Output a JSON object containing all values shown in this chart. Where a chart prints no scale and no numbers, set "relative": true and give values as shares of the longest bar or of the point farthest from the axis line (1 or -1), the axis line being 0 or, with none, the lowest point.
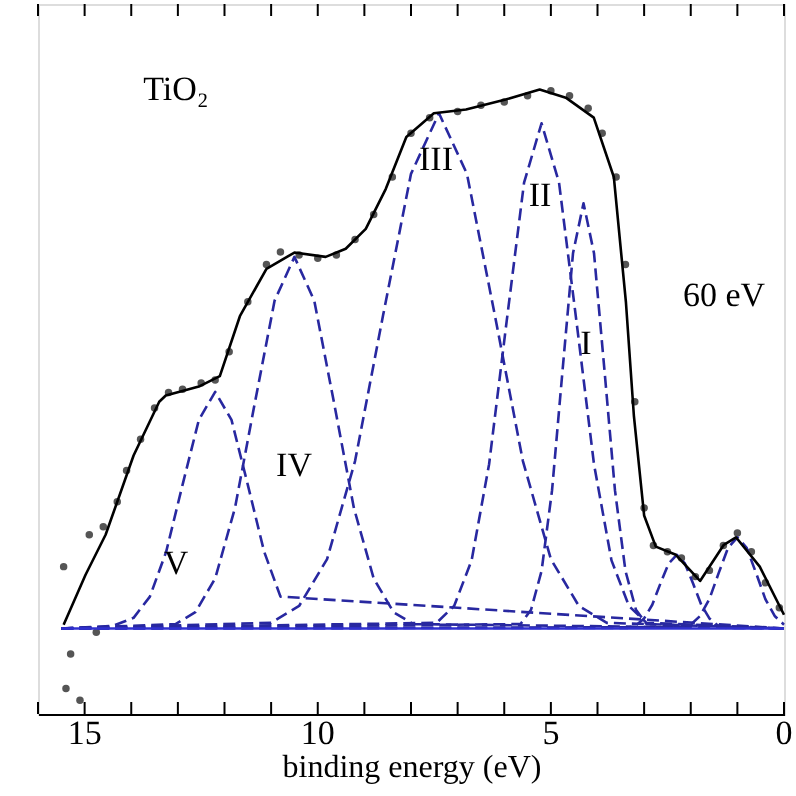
{
  "chart_data": {
    "type": "line",
    "relative": true,
    "xlabel": "binding energy (eV)",
    "xlim": [
      16,
      0
    ],
    "xticks": [
      0,
      {
        "value": 1,
        "label": null
      },
      {
        "value": 2,
        "label": null
      },
      {
        "value": 3,
        "label": null
      },
      {
        "value": 4,
        "label": null
      },
      5,
      {
        "value": 6,
        "label": null
      },
      {
        "value": 7,
        "label": null
      },
      {
        "value": 8,
        "label": null
      },
      {
        "value": 9,
        "label": null
      },
      10,
      {
        "value": 11,
        "label": null
      },
      {
        "value": 12,
        "label": null
      },
      {
        "value": 13,
        "label": null
      },
      {
        "value": 14,
        "label": null
      },
      15,
      {
        "value": 16,
        "label": null
      }
    ],
    "tick_labels": "x",
    "grid": false,
    "series": [
      {
        "type": "scatter",
        "marker": "circle",
        "color": "#555555",
        "x": [
          15.45,
          15.3,
          15.4,
          15.1,
          14.9,
          14.75,
          14.6,
          14.3,
          14.1,
          13.8,
          13.5,
          13.2,
          12.9,
          12.5,
          12.2,
          11.9,
          11.5,
          11.1,
          10.8,
          10.4,
          10.0,
          9.6,
          9.2,
          8.8,
          8.4,
          8.0,
          7.6,
          7.0,
          6.5,
          6.0,
          5.5,
          5.0,
          4.6,
          4.2,
          3.9,
          3.6,
          3.4,
          3.2,
          3.0,
          2.8,
          2.5,
          2.2,
          1.9,
          1.6,
          1.3,
          1.0,
          0.7,
          0.4,
          0.1
        ],
        "values": [
          0.236,
          0.096,
          0.041,
          0.022,
          0.287,
          0.131,
          0.3,
          0.34,
          0.39,
          0.44,
          0.49,
          0.515,
          0.52,
          0.53,
          0.535,
          0.58,
          0.66,
          0.72,
          0.74,
          0.735,
          0.73,
          0.735,
          0.76,
          0.8,
          0.86,
          0.93,
          0.955,
          0.965,
          0.975,
          0.98,
          0.99,
          0.998,
          0.99,
          0.97,
          0.93,
          0.86,
          0.72,
          0.5,
          0.33,
          0.27,
          0.26,
          0.25,
          0.22,
          0.23,
          0.27,
          0.29,
          0.26,
          0.21,
          0.17
        ]
      },
      {
        "color": "#2828a0",
        "line_style": "dashed",
        "x": [
          15.5,
          14.4,
          13.95,
          13.6,
          13.25,
          12.9,
          12.55,
          12.2,
          11.85,
          11.5,
          11.15,
          10.8,
          0
        ],
        "values": [
          0.137,
          0.141,
          0.154,
          0.188,
          0.26,
          0.367,
          0.471,
          0.516,
          0.471,
          0.367,
          0.26,
          0.188,
          0.137
        ]
      },
      {
        "color": "#2828a0",
        "line_style": "dashed",
        "x": [
          15.5,
          13.05,
          12.625,
          12.2,
          11.775,
          11.35,
          10.925,
          10.5,
          10.075,
          9.65,
          9.225,
          8.8,
          8.375,
          7.95,
          0
        ],
        "values": [
          0.137,
          0.144,
          0.163,
          0.217,
          0.33,
          0.498,
          0.662,
          0.732,
          0.662,
          0.498,
          0.33,
          0.217,
          0.163,
          0.144,
          0.137
        ]
      },
      {
        "color": "#2828a0",
        "line_style": "dashed",
        "x": [
          15.5,
          11.0,
          10.4,
          9.8,
          9.2,
          8.6,
          8.0,
          7.4,
          6.8,
          6.2,
          5.6,
          5.0,
          4.4,
          3.8,
          0
        ],
        "values": [
          0.137,
          0.146,
          0.173,
          0.248,
          0.405,
          0.638,
          0.865,
          0.962,
          0.865,
          0.638,
          0.405,
          0.248,
          0.173,
          0.146,
          0.137
        ]
      },
      {
        "color": "#2828a0",
        "line_style": "dashed",
        "x": [
          15.5,
          7.45,
          7.075,
          6.7,
          6.325,
          5.95,
          5.575,
          5.2,
          4.825,
          4.45,
          4.075,
          3.7,
          3.325,
          2.95,
          0
        ],
        "values": [
          0.137,
          0.146,
          0.173,
          0.246,
          0.4,
          0.628,
          0.851,
          0.946,
          0.851,
          0.628,
          0.4,
          0.246,
          0.173,
          0.146,
          0.137
        ]
      },
      {
        "color": "#2828a0",
        "line_style": "dashed",
        "x": [
          15.5,
          5.65,
          5.425,
          5.2,
          4.975,
          4.75,
          4.525,
          4.3,
          4.075,
          3.85,
          3.625,
          3.4,
          3.175,
          2.95,
          0
        ],
        "values": [
          0.137,
          0.144,
          0.167,
          0.229,
          0.358,
          0.55,
          0.738,
          0.818,
          0.738,
          0.55,
          0.358,
          0.229,
          0.167,
          0.144,
          0.137
        ]
      },
      {
        "color": "#2828a0",
        "line_style": "dashed",
        "x": [
          15.5,
          3.35,
          3.175,
          3.0,
          2.825,
          2.65,
          2.475,
          2.3,
          2.125,
          1.95,
          1.775,
          1.6,
          1.425,
          1.25,
          0
        ],
        "values": [
          0.137,
          0.138,
          0.142,
          0.153,
          0.175,
          0.209,
          0.241,
          0.255,
          0.241,
          0.209,
          0.175,
          0.153,
          0.142,
          0.138,
          0.137
        ]
      },
      {
        "color": "#2828a0",
        "line_style": "dashed",
        "x": [
          15.5,
          2.2,
          2.0,
          1.8,
          1.6,
          1.4,
          1.2,
          1.0,
          0.8,
          0.6,
          0.4,
          0.2,
          0.0
        ],
        "values": [
          0.137,
          0.139,
          0.143,
          0.157,
          0.184,
          0.226,
          0.266,
          0.283,
          0.266,
          0.226,
          0.184,
          0.157,
          0.143
        ]
      },
      {
        "color": "#3030d0",
        "line_style": "solid",
        "x": [
          15.5,
          0
        ],
        "values": [
          0.137,
          0.137
        ]
      },
      {
        "color": "#000000",
        "line_style": "solid",
        "x": [
          15.45,
          14.98,
          14.55,
          13.95,
          13.4,
          13.26,
          12.53,
          12.1,
          11.67,
          11.1,
          10.5,
          9.83,
          9.4,
          8.97,
          8.54,
          8.1,
          7.51,
          6.82,
          5.97,
          5.24,
          4.68,
          4.08,
          3.65,
          3.39,
          3.22,
          3.0,
          2.75,
          2.32,
          1.8,
          1.29,
          1.03,
          0.52,
          0
        ],
        "values": [
          0.143,
          0.223,
          0.287,
          0.414,
          0.5,
          0.51,
          0.525,
          0.541,
          0.637,
          0.713,
          0.739,
          0.732,
          0.745,
          0.777,
          0.841,
          0.924,
          0.962,
          0.968,
          0.984,
          1.0,
          0.987,
          0.955,
          0.86,
          0.659,
          0.478,
          0.318,
          0.268,
          0.255,
          0.213,
          0.271,
          0.283,
          0.236,
          0.159
        ]
      }
    ],
    "annotations": [
      "TiO₂",
      "60 eV",
      "I",
      "II",
      "III",
      "IV",
      "V"
    ]
  }
}
